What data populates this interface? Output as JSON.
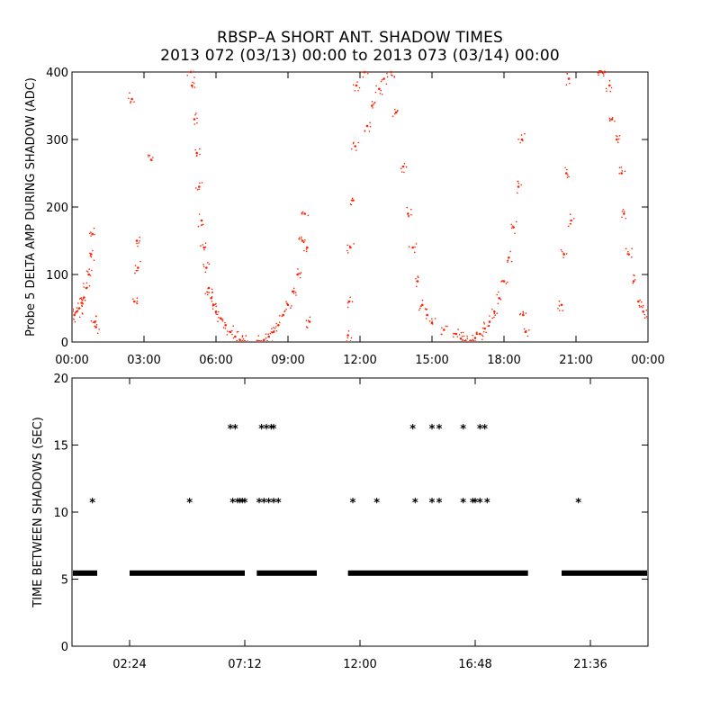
{
  "title": {
    "line1": "RBSP–A SHORT ANT. SHADOW TIMES",
    "line2": "2013 072 (03/13) 00:00 to 2013 073 (03/14) 00:00"
  },
  "colors": {
    "amp_points": "#ff2200",
    "shadow_marks": "#000000",
    "axes": "#000000"
  },
  "chart_data": [
    {
      "type": "scatter",
      "name": "amplitude",
      "ylabel": "Probe 5 DELTA AMP DURING SHADOW (ADC)",
      "xlabel": "",
      "xlim": [
        0,
        24
      ],
      "ylim": [
        0,
        400
      ],
      "x_unit": "hours",
      "xticks": [
        0,
        3,
        6,
        9,
        12,
        15,
        18,
        21,
        24
      ],
      "xtick_labels": [
        "00:00",
        "03:00",
        "06:00",
        "09:00",
        "12:00",
        "15:00",
        "18:00",
        "21:00",
        "00:00"
      ],
      "yticks": [
        0,
        100,
        200,
        300,
        400
      ],
      "ytick_labels": [
        "0",
        "100",
        "200",
        "300",
        "400"
      ],
      "points": [
        [
          0.0,
          35
        ],
        [
          0.1,
          40
        ],
        [
          0.2,
          45
        ],
        [
          0.3,
          50
        ],
        [
          0.4,
          58
        ],
        [
          0.5,
          66
        ],
        [
          0.6,
          80
        ],
        [
          0.7,
          100
        ],
        [
          0.8,
          130
        ],
        [
          0.85,
          160
        ],
        [
          0.95,
          30
        ],
        [
          1.0,
          22
        ],
        [
          2.5,
          360
        ],
        [
          2.6,
          60
        ],
        [
          2.7,
          150
        ],
        [
          2.75,
          110
        ],
        [
          3.3,
          270
        ],
        [
          4.95,
          400
        ],
        [
          5.0,
          380
        ],
        [
          5.1,
          330
        ],
        [
          5.2,
          280
        ],
        [
          5.3,
          230
        ],
        [
          5.4,
          180
        ],
        [
          5.5,
          140
        ],
        [
          5.6,
          110
        ],
        [
          5.7,
          80
        ],
        [
          5.8,
          65
        ],
        [
          5.9,
          55
        ],
        [
          6.0,
          45
        ],
        [
          6.2,
          35
        ],
        [
          6.4,
          25
        ],
        [
          6.6,
          15
        ],
        [
          6.8,
          8
        ],
        [
          7.0,
          3
        ],
        [
          7.2,
          1
        ],
        [
          7.8,
          1
        ],
        [
          8.0,
          3
        ],
        [
          8.2,
          8
        ],
        [
          8.4,
          15
        ],
        [
          8.6,
          25
        ],
        [
          8.8,
          40
        ],
        [
          9.0,
          55
        ],
        [
          9.2,
          75
        ],
        [
          9.4,
          100
        ],
        [
          9.6,
          150
        ],
        [
          9.7,
          190
        ],
        [
          9.8,
          140
        ],
        [
          9.9,
          30
        ],
        [
          11.5,
          10
        ],
        [
          11.55,
          60
        ],
        [
          11.6,
          140
        ],
        [
          11.7,
          210
        ],
        [
          11.8,
          290
        ],
        [
          11.85,
          380
        ],
        [
          12.2,
          400
        ],
        [
          12.3,
          320
        ],
        [
          12.5,
          350
        ],
        [
          12.8,
          375
        ],
        [
          13.0,
          390
        ],
        [
          13.3,
          400
        ],
        [
          13.5,
          340
        ],
        [
          13.8,
          260
        ],
        [
          14.0,
          190
        ],
        [
          14.2,
          140
        ],
        [
          14.4,
          90
        ],
        [
          14.6,
          55
        ],
        [
          14.8,
          40
        ],
        [
          15.0,
          28
        ],
        [
          15.5,
          18
        ],
        [
          16.0,
          12
        ],
        [
          16.2,
          5
        ],
        [
          16.4,
          2
        ],
        [
          16.6,
          2
        ],
        [
          16.8,
          6
        ],
        [
          17.0,
          12
        ],
        [
          17.2,
          20
        ],
        [
          17.4,
          30
        ],
        [
          17.6,
          45
        ],
        [
          17.8,
          65
        ],
        [
          18.0,
          90
        ],
        [
          18.2,
          125
        ],
        [
          18.4,
          170
        ],
        [
          18.6,
          230
        ],
        [
          18.75,
          300
        ],
        [
          18.8,
          40
        ],
        [
          18.9,
          15
        ],
        [
          20.4,
          55
        ],
        [
          20.5,
          130
        ],
        [
          20.6,
          250
        ],
        [
          20.7,
          390
        ],
        [
          20.8,
          180
        ],
        [
          22.0,
          400
        ],
        [
          22.2,
          400
        ],
        [
          22.4,
          380
        ],
        [
          22.5,
          330
        ],
        [
          22.7,
          300
        ],
        [
          22.9,
          250
        ],
        [
          23.0,
          190
        ],
        [
          23.2,
          130
        ],
        [
          23.4,
          90
        ],
        [
          23.6,
          60
        ],
        [
          23.8,
          45
        ],
        [
          24.0,
          35
        ]
      ]
    },
    {
      "type": "scatter",
      "name": "shadow-interval",
      "ylabel": "TIME BETWEEN SHADOWS (SEC)",
      "xlabel": "",
      "xlim": [
        0,
        24
      ],
      "ylim": [
        0,
        20
      ],
      "x_unit": "hours",
      "xticks": [
        2.4,
        7.2,
        12.0,
        16.8,
        21.6
      ],
      "xtick_labels": [
        "02:24",
        "07:12",
        "12:00",
        "16:48",
        "21:36"
      ],
      "yticks": [
        0,
        5,
        10,
        15,
        20
      ],
      "ytick_labels": [
        "0",
        "5",
        "10",
        "15",
        "20"
      ],
      "baseline_value": 5.45,
      "baseline_segments": [
        [
          0.0,
          1.05
        ],
        [
          2.4,
          7.2
        ],
        [
          7.7,
          10.2
        ],
        [
          11.5,
          19.0
        ],
        [
          20.4,
          24.0
        ]
      ],
      "points": [
        [
          0.85,
          10.8
        ],
        [
          4.9,
          10.8
        ],
        [
          6.6,
          16.3
        ],
        [
          6.8,
          16.3
        ],
        [
          6.7,
          10.8
        ],
        [
          6.9,
          10.8
        ],
        [
          7.0,
          10.8
        ],
        [
          7.1,
          10.8
        ],
        [
          7.2,
          10.8
        ],
        [
          7.9,
          16.3
        ],
        [
          8.1,
          16.3
        ],
        [
          8.3,
          16.3
        ],
        [
          8.4,
          16.3
        ],
        [
          7.8,
          10.8
        ],
        [
          8.0,
          10.8
        ],
        [
          8.2,
          10.8
        ],
        [
          8.4,
          10.8
        ],
        [
          8.6,
          10.8
        ],
        [
          11.7,
          10.8
        ],
        [
          12.7,
          10.8
        ],
        [
          14.2,
          16.3
        ],
        [
          15.0,
          16.3
        ],
        [
          15.3,
          16.3
        ],
        [
          16.3,
          16.3
        ],
        [
          17.0,
          16.3
        ],
        [
          17.2,
          16.3
        ],
        [
          14.3,
          10.8
        ],
        [
          15.0,
          10.8
        ],
        [
          15.3,
          10.8
        ],
        [
          16.3,
          10.8
        ],
        [
          16.7,
          10.8
        ],
        [
          16.8,
          10.8
        ],
        [
          17.0,
          10.8
        ],
        [
          17.3,
          10.8
        ],
        [
          21.1,
          10.8
        ]
      ]
    }
  ]
}
